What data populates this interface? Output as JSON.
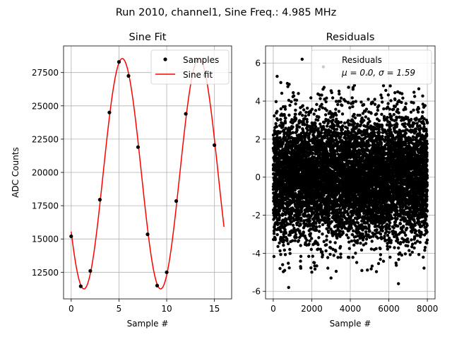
{
  "figure": {
    "suptitle": "Run 2010, channel1, Sine Freq.: 4.985 MHz"
  },
  "chart_data": [
    {
      "type": "scatter",
      "title": "Sine Fit",
      "xlabel": "Sample #",
      "ylabel": "ADC Counts",
      "xlim": [
        -0.8,
        16.8
      ],
      "ylim": [
        10500,
        29500
      ],
      "xticks": [
        0,
        5,
        10,
        15
      ],
      "yticks": [
        12500,
        15000,
        17500,
        20000,
        22500,
        25000,
        27500
      ],
      "grid": true,
      "legend": {
        "location": "top-right",
        "entries": [
          "Samples",
          "Sine fit"
        ]
      },
      "series": [
        {
          "name": "Samples",
          "style": "points",
          "color": "#000000",
          "x": [
            0,
            1,
            2,
            3,
            4,
            5,
            6,
            7,
            8,
            9,
            10,
            11,
            12,
            13,
            14,
            15
          ],
          "y": [
            15200,
            11450,
            12600,
            17950,
            24500,
            28300,
            27250,
            21900,
            15350,
            11500,
            12500,
            17850,
            24400,
            28350,
            27300,
            22050
          ]
        },
        {
          "name": "Sine fit",
          "style": "line",
          "color": "#ff0000",
          "model": {
            "offset": 19900,
            "amplitude": 8650,
            "period": 8.03,
            "peak_x": 5.35,
            "x_range": [
              0,
              16
            ]
          }
        }
      ]
    },
    {
      "type": "scatter",
      "title": "Residuals",
      "xlabel": "Sample #",
      "ylabel": "",
      "xlim": [
        -400,
        8400
      ],
      "ylim": [
        -6.4,
        6.9
      ],
      "xticks": [
        0,
        2000,
        4000,
        6000,
        8000
      ],
      "yticks": [
        -6,
        -4,
        -2,
        0,
        2,
        4,
        6
      ],
      "grid": true,
      "legend": {
        "location": "top-right",
        "entries": [
          "Residuals",
          "μ = 0.0, σ = 1.59"
        ]
      },
      "series": [
        {
          "name": "Residuals",
          "style": "points",
          "color": "#000000",
          "count": 8000,
          "x_range": [
            0,
            7999
          ],
          "mu": 0.0,
          "sigma": 1.59,
          "notable_points": [
            [
              2600,
              5.8
            ],
            [
              1500,
              6.2
            ],
            [
              200,
              5.3
            ],
            [
              4900,
              5.4
            ],
            [
              800,
              -5.8
            ],
            [
              3000,
              -5.3
            ],
            [
              6500,
              -5.6
            ]
          ]
        }
      ]
    }
  ]
}
